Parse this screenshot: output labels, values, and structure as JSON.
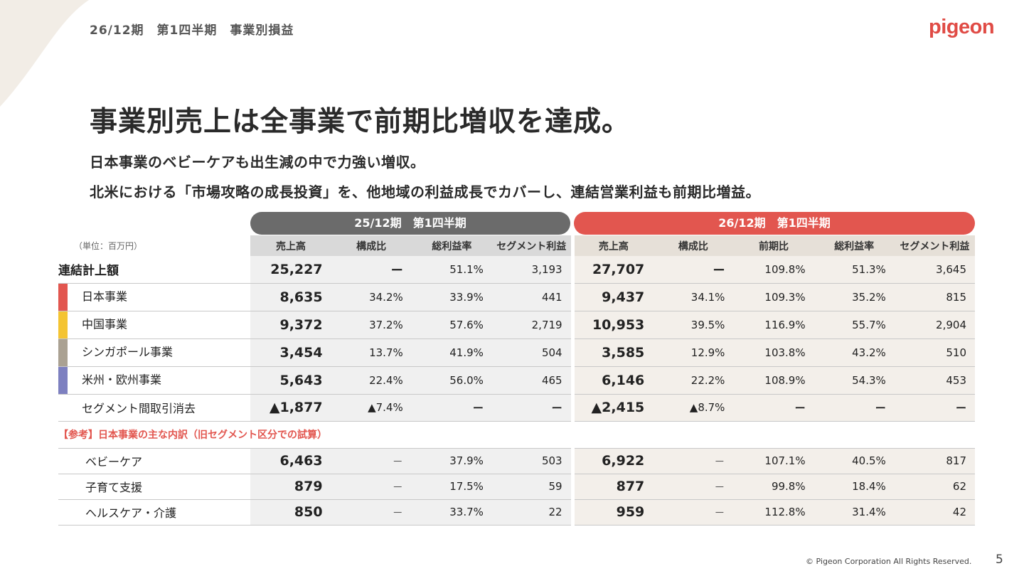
{
  "header": {
    "title": "26/12期　第1四半期　事業別損益",
    "logo": "pigeon"
  },
  "headline": "事業別売上は全事業で前期比増収を達成。",
  "subtext": [
    "日本事業のベビーケアも出生減の中で力強い増収。",
    "北米における「市場攻略の成長投資」を、他地域の利益成長でカバーし、連結営業利益も前期比増益。"
  ],
  "periods": {
    "prev": "25/12期　第1四半期",
    "curr": "26/12期　第1四半期"
  },
  "unit": "（単位：百万円）",
  "columns": {
    "prev": [
      "売上高",
      "構成比",
      "総利益率",
      "セグメント利益"
    ],
    "curr": [
      "売上高",
      "構成比",
      "前期比",
      "総利益率",
      "セグメント利益"
    ]
  },
  "colors": {
    "japan": "#e2564f",
    "china": "#f4c432",
    "singapore": "#aaa192",
    "americas": "#7d80c0"
  },
  "rows": [
    {
      "label": "連結計上額",
      "prev": [
        "25,227",
        "ー",
        "51.1%",
        "3,193"
      ],
      "curr": [
        "27,707",
        "ー",
        "109.8%",
        "51.3%",
        "3,645"
      ]
    },
    {
      "label": "日本事業",
      "prev": [
        "8,635",
        "34.2%",
        "33.9%",
        "441"
      ],
      "curr": [
        "9,437",
        "34.1%",
        "109.3%",
        "35.2%",
        "815"
      ]
    },
    {
      "label": "中国事業",
      "prev": [
        "9,372",
        "37.2%",
        "57.6%",
        "2,719"
      ],
      "curr": [
        "10,953",
        "39.5%",
        "116.9%",
        "55.7%",
        "2,904"
      ]
    },
    {
      "label": "シンガポール事業",
      "prev": [
        "3,454",
        "13.7%",
        "41.9%",
        "504"
      ],
      "curr": [
        "3,585",
        "12.9%",
        "103.8%",
        "43.2%",
        "510"
      ]
    },
    {
      "label": "米州・欧州事業",
      "prev": [
        "5,643",
        "22.4%",
        "56.0%",
        "465"
      ],
      "curr": [
        "6,146",
        "22.2%",
        "108.9%",
        "54.3%",
        "453"
      ]
    },
    {
      "label": "セグメント間取引消去",
      "prev": [
        "▲1,877",
        "▲7.4%",
        "ー",
        "ー"
      ],
      "curr": [
        "▲2,415",
        "▲8.7%",
        "ー",
        "ー",
        "ー"
      ]
    }
  ],
  "reference_title": "【参考】日本事業の主な内訳（旧セグメント区分での試算）",
  "ref_rows": [
    {
      "label": "ベビーケア",
      "prev": [
        "6,463",
        "－",
        "37.9%",
        "503"
      ],
      "curr": [
        "6,922",
        "－",
        "107.1%",
        "40.5%",
        "817"
      ]
    },
    {
      "label": "子育て支援",
      "prev": [
        "879",
        "－",
        "17.5%",
        "59"
      ],
      "curr": [
        "877",
        "－",
        "99.8%",
        "18.4%",
        "62"
      ]
    },
    {
      "label": "ヘルスケア・介護",
      "prev": [
        "850",
        "－",
        "33.7%",
        "22"
      ],
      "curr": [
        "959",
        "－",
        "112.8%",
        "31.4%",
        "42"
      ]
    }
  ],
  "footer": {
    "copyright": "© Pigeon Corporation All Rights Reserved.",
    "page": "5"
  }
}
